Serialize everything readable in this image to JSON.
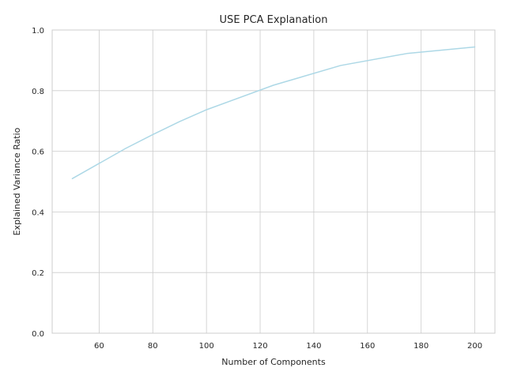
{
  "chart_data": {
    "type": "line",
    "title": "USE PCA Explanation",
    "xlabel": "Number of Components",
    "ylabel": "Explained Variance Ratio",
    "xlim": [
      42.5,
      207.5
    ],
    "ylim": [
      0,
      1.0
    ],
    "xticks": [
      60,
      80,
      100,
      120,
      140,
      160,
      180,
      200
    ],
    "yticks": [
      0.0,
      0.2,
      0.4,
      0.6,
      0.8,
      1.0
    ],
    "xtick_labels": [
      "60",
      "80",
      "100",
      "120",
      "140",
      "160",
      "180",
      "200"
    ],
    "ytick_labels": [
      "0.0",
      "0.2",
      "0.4",
      "0.6",
      "0.8",
      "1.0"
    ],
    "grid": true,
    "series": [
      {
        "color": "#add8e6",
        "x": [
          50,
          60,
          70,
          80,
          90,
          100,
          125,
          150,
          175,
          200
        ],
        "y": [
          0.51,
          0.56,
          0.61,
          0.655,
          0.698,
          0.737,
          0.818,
          0.883,
          0.923,
          0.944
        ]
      }
    ]
  }
}
